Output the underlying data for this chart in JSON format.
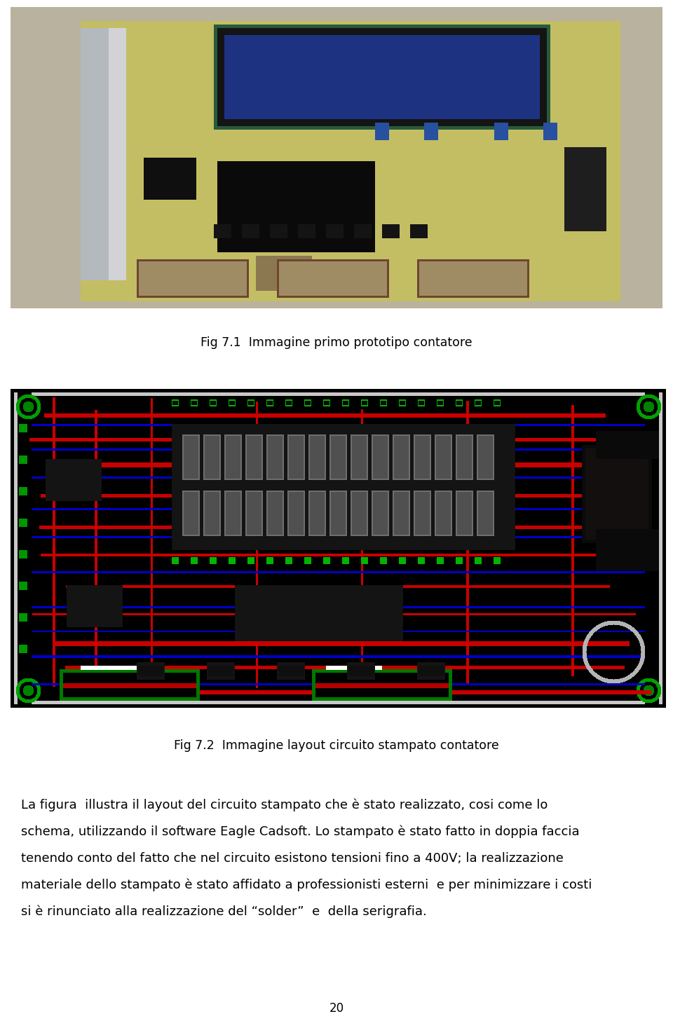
{
  "fig_caption1": "Fig 7.1  Immagine primo prototipo contatore",
  "fig_caption2": "Fig 7.2  Immagine layout circuito stampato contatore",
  "body_text_line1": "La figura  illustra il layout del circuito stampato che è stato realizzato, cosi come lo",
  "body_text_line2": "schema, utilizzando il software Eagle Cadsoft. Lo stampato è stato fatto in doppia faccia",
  "body_text_line3": "tenendo conto del fatto che nel circuito esistono tensioni fino a 400V; la realizzazione",
  "body_text_line4": "materiale dello stampato è stato affidato a professionisti esterni  e per minimizzare i costi",
  "body_text_line5": "si è rinunciato alla realizzazione del “solder”  e  della serigrafia.",
  "page_number": "20",
  "bg_color": "#ffffff",
  "text_color": "#000000",
  "caption_fontsize": 12.5,
  "body_fontsize": 13.0,
  "page_num_fontsize": 12
}
